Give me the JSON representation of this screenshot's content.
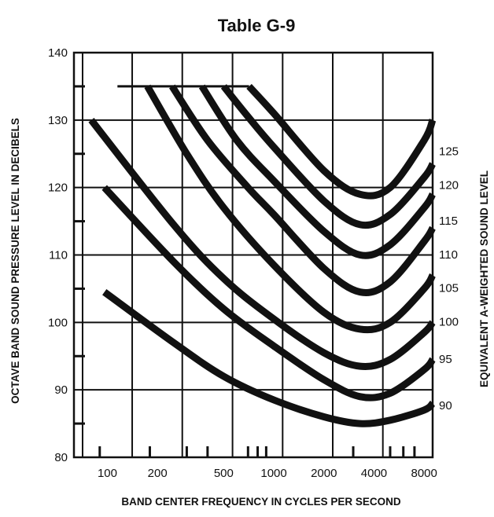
{
  "chart_data": {
    "type": "line",
    "title": "Table G-9",
    "xlabel": "BAND CENTER FREQUENCY IN CYCLES PER SECOND",
    "ylabel": "OCTAVE BAND SOUND PRESSURE LEVEL IN DECIBELS",
    "y2label": "EQUIVALENT A-WEIGHTED SOUND LEVEL",
    "x_scale": "log",
    "xlim": [
      63,
      9000
    ],
    "ylim": [
      80,
      140
    ],
    "x_ticks": [
      {
        "value": 100,
        "label": "100"
      },
      {
        "value": 200,
        "label": "200"
      },
      {
        "value": 500,
        "label": "500"
      },
      {
        "value": 1000,
        "label": "1000"
      },
      {
        "value": 2000,
        "label": "2000"
      },
      {
        "value": 4000,
        "label": "4000"
      },
      {
        "value": 8000,
        "label": "8000"
      }
    ],
    "y_ticks": [
      {
        "value": 80,
        "label": "80"
      },
      {
        "value": 90,
        "label": "90"
      },
      {
        "value": 100,
        "label": "100"
      },
      {
        "value": 110,
        "label": "110"
      },
      {
        "value": 120,
        "label": "120"
      },
      {
        "value": 130,
        "label": "130"
      },
      {
        "value": 140,
        "label": "140"
      }
    ],
    "grid": true,
    "series": [
      {
        "name": "90",
        "x": [
          96,
          250,
          500,
          1000,
          2000,
          3300,
          5000,
          8000,
          9000
        ],
        "y": [
          104.5,
          97,
          92,
          88.5,
          86,
          85,
          85.5,
          87,
          88
        ]
      },
      {
        "name": "95",
        "x": [
          96,
          250,
          500,
          1000,
          2000,
          3300,
          5000,
          8000,
          9000
        ],
        "y": [
          120,
          109,
          102,
          96.5,
          91.5,
          89,
          89.5,
          93,
          94.5
        ]
      },
      {
        "name": "100",
        "x": [
          80,
          250,
          500,
          1000,
          2000,
          3300,
          5000,
          8000,
          9000
        ],
        "y": [
          130,
          114.5,
          106.5,
          100.5,
          95.5,
          93.5,
          94.5,
          98.5,
          100
        ]
      },
      {
        "name": "105",
        "x": [
          174,
          300,
          500,
          1000,
          2000,
          3300,
          5000,
          8000,
          9000
        ],
        "y": [
          135,
          125,
          117,
          108.5,
          101.5,
          99,
          100,
          105,
          107
        ]
      },
      {
        "name": "110",
        "x": [
          245,
          400,
          700,
          1000,
          2000,
          3300,
          5000,
          8000,
          9000
        ],
        "y": [
          135,
          127,
          120,
          116,
          108,
          104.5,
          106,
          112,
          114
        ]
      },
      {
        "name": "115",
        "x": [
          370,
          600,
          1000,
          2000,
          3300,
          5000,
          8000,
          9000
        ],
        "y": [
          135,
          127,
          121,
          113.5,
          110,
          111.5,
          117,
          119
        ]
      },
      {
        "name": "120",
        "x": [
          500,
          700,
          1000,
          2000,
          3300,
          5000,
          8000,
          9000
        ],
        "y": [
          135,
          130.5,
          126,
          118,
          114.5,
          116,
          121.5,
          123.5
        ]
      },
      {
        "name": "125",
        "x": [
          710,
          1000,
          2000,
          3300,
          5000,
          8000,
          9000
        ],
        "y": [
          135,
          131,
          122.5,
          119,
          120,
          127,
          130
        ]
      }
    ],
    "right_axis_labels": [
      {
        "y": 87.8,
        "label": "90"
      },
      {
        "y": 94.7,
        "label": "95"
      },
      {
        "y": 100.2,
        "label": "100"
      },
      {
        "y": 105.2,
        "label": "105"
      },
      {
        "y": 110.2,
        "label": "110"
      },
      {
        "y": 115.2,
        "label": "115"
      },
      {
        "y": 120.5,
        "label": "120"
      },
      {
        "y": 125.5,
        "label": "125"
      }
    ]
  }
}
